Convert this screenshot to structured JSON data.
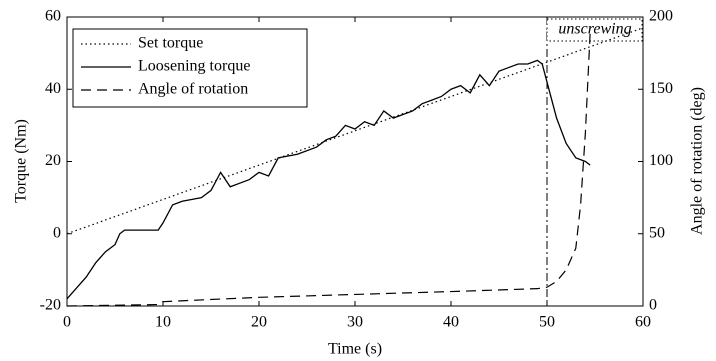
{
  "chart_data": {
    "type": "line",
    "xlabel": "Time (s)",
    "ylabel": "Torque (Nm)",
    "y2label": "Angle of rotation (deg)",
    "xlim": [
      0,
      60
    ],
    "xticks": [
      0,
      10,
      20,
      30,
      40,
      50,
      60
    ],
    "ylim": [
      -20,
      60
    ],
    "yticks": [
      -20,
      0,
      20,
      40,
      60
    ],
    "y2lim": [
      0,
      200
    ],
    "y2ticks": [
      0,
      50,
      100,
      150,
      200
    ],
    "legend": "upper left",
    "series": [
      {
        "name": "Set torque",
        "color": "#000000",
        "style": "dotted",
        "x": [
          0,
          60
        ],
        "values": [
          0,
          57
        ]
      },
      {
        "name": "Loosening torque",
        "color": "#000000",
        "style": "solid",
        "x": [
          0,
          1,
          2,
          3,
          4,
          5,
          5.5,
          6,
          8,
          9.5,
          10,
          11,
          12,
          14,
          15,
          16,
          17,
          18,
          19,
          20,
          21,
          22,
          24,
          26,
          27,
          28,
          29,
          30,
          31,
          32,
          33,
          34,
          35,
          36,
          37,
          38,
          39,
          40,
          41,
          42,
          43,
          44,
          45,
          46,
          47,
          48,
          49,
          49.5,
          50,
          51,
          52,
          53,
          54,
          54.5
        ],
        "values": [
          -18,
          -15,
          -12,
          -8,
          -5,
          -3,
          0,
          1,
          1,
          1,
          3,
          8,
          9,
          10,
          12,
          17,
          13,
          14,
          15,
          17,
          16,
          21,
          22,
          24,
          26,
          27,
          30,
          29,
          31,
          30,
          34,
          32,
          33,
          34,
          36,
          37,
          38,
          40,
          41,
          39,
          44,
          41,
          45,
          46,
          47,
          47,
          48,
          47,
          42,
          32,
          25,
          21,
          20,
          19
        ]
      },
      {
        "name": "Angle of rotation",
        "color": "#000000",
        "style": "dashed",
        "axis": "y2",
        "x": [
          0,
          9.5,
          10,
          20,
          30,
          40,
          49,
          50,
          51,
          52,
          53,
          53.5,
          54,
          54.5
        ],
        "values": [
          0,
          1,
          3,
          6,
          8,
          10,
          12,
          13,
          17,
          25,
          40,
          70,
          120,
          190
        ]
      }
    ],
    "annotations": [
      {
        "text": "unscrewing",
        "x": 50
      }
    ]
  }
}
